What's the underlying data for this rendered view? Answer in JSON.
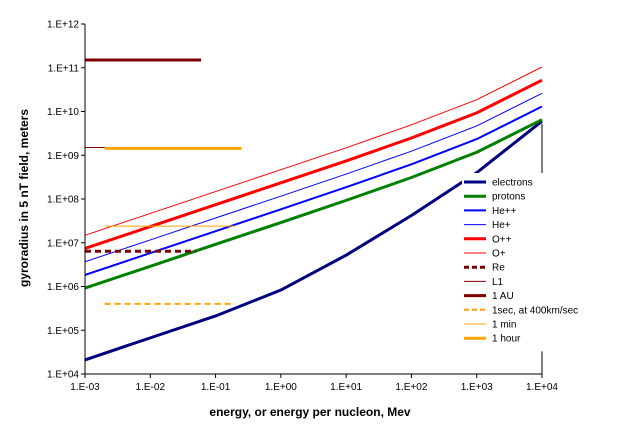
{
  "chart_data": {
    "type": "line",
    "title": "",
    "xlabel": "energy, or energy per nucleon, Mev",
    "ylabel": "gyroradius in 5 nT field, meters",
    "x_scale": "log",
    "y_scale": "log",
    "xlim": [
      0.001,
      10000
    ],
    "ylim": [
      10000,
      1000000000000
    ],
    "x_ticks": [
      {
        "value": 0.001,
        "label": "1.E-03"
      },
      {
        "value": 0.01,
        "label": "1.E-02"
      },
      {
        "value": 0.1,
        "label": "1.E-01"
      },
      {
        "value": 1,
        "label": "1.E+00"
      },
      {
        "value": 10,
        "label": "1.E+01"
      },
      {
        "value": 100,
        "label": "1.E+02"
      },
      {
        "value": 1000,
        "label": "1.E+03"
      },
      {
        "value": 10000,
        "label": "1.E+04"
      }
    ],
    "y_ticks": [
      {
        "value": 10000,
        "label": "1.E+04"
      },
      {
        "value": 100000,
        "label": "1.E+05"
      },
      {
        "value": 1000000,
        "label": "1.E+06"
      },
      {
        "value": 10000000,
        "label": "1.E+07"
      },
      {
        "value": 100000000,
        "label": "1.E+08"
      },
      {
        "value": 1000000000,
        "label": "1.E+09"
      },
      {
        "value": 10000000000,
        "label": "1.E+10"
      },
      {
        "value": 100000000000,
        "label": "1.E+11"
      },
      {
        "value": 1000000000000,
        "label": "1.E+12"
      }
    ],
    "grid": false,
    "legend_position": "right",
    "series": [
      {
        "name": "electrons",
        "color": "#000080",
        "width": 3,
        "dash": "solid",
        "x": [
          0.001,
          0.01,
          0.1,
          1,
          10,
          100,
          1000,
          10000
        ],
        "y": [
          21000,
          67000,
          212000,
          830000,
          5200000,
          42000000,
          400000000,
          6000000000
        ]
      },
      {
        "name": "protons",
        "color": "#008000",
        "width": 3,
        "dash": "solid",
        "x": [
          0.001,
          0.01,
          0.1,
          1,
          10,
          100,
          1000,
          10000
        ],
        "y": [
          920000,
          2900000,
          9200000,
          29000000,
          93000000,
          310000000,
          1170000000,
          6500000000
        ]
      },
      {
        "name": "He++",
        "color": "#0000FF",
        "width": 2,
        "dash": "solid",
        "x": [
          0.001,
          0.01,
          0.1,
          1,
          10,
          100,
          1000,
          10000
        ],
        "y": [
          1840000,
          5800000,
          18400000,
          58000000,
          186000000,
          620000000,
          2340000000,
          13000000000
        ]
      },
      {
        "name": "He+",
        "color": "#0000FF",
        "width": 1,
        "dash": "solid",
        "x": [
          0.001,
          0.01,
          0.1,
          1,
          10,
          100,
          1000,
          10000
        ],
        "y": [
          3680000,
          11600000,
          36800000,
          116000000,
          372000000,
          1240000000,
          4680000000,
          26000000000
        ]
      },
      {
        "name": "O++",
        "color": "#FF0000",
        "width": 3,
        "dash": "solid",
        "x": [
          0.001,
          0.01,
          0.1,
          1,
          10,
          100,
          1000,
          10000
        ],
        "y": [
          7400000,
          23400000,
          74000000,
          234000000,
          740000000,
          2480000000,
          9300000000,
          52000000000
        ]
      },
      {
        "name": "O+",
        "color": "#FF0000",
        "width": 1,
        "dash": "solid",
        "x": [
          0.001,
          0.01,
          0.1,
          1,
          10,
          100,
          1000,
          10000
        ],
        "y": [
          14800000,
          46800000,
          148000000,
          468000000,
          1480000000,
          4960000000,
          18600000000,
          104000000000
        ]
      },
      {
        "name": "Re",
        "color": "#800000",
        "width": 3,
        "dash": "dash",
        "x": [
          0.001,
          0.05
        ],
        "y": [
          6400000,
          6400000
        ]
      },
      {
        "name": "L1",
        "color": "#800000",
        "width": 1,
        "dash": "solid",
        "x": [
          0.001,
          0.05
        ],
        "y": [
          1500000000,
          1500000000
        ]
      },
      {
        "name": "1 AU",
        "color": "#800000",
        "width": 3,
        "dash": "solid",
        "x": [
          0.001,
          0.06
        ],
        "y": [
          150000000000,
          150000000000
        ]
      },
      {
        "name": "1sec, at 400km/sec",
        "color": "#FFA500",
        "width": 2,
        "dash": "dash",
        "x": [
          0.002,
          0.2
        ],
        "y": [
          400000,
          400000
        ]
      },
      {
        "name": "1 min",
        "color": "#FFA500",
        "width": 1,
        "dash": "solid",
        "x": [
          0.002,
          0.2
        ],
        "y": [
          24000000,
          24000000
        ]
      },
      {
        "name": "1 hour",
        "color": "#FFA500",
        "width": 3,
        "dash": "solid",
        "x": [
          0.002,
          0.25
        ],
        "y": [
          1440000000,
          1440000000
        ]
      }
    ]
  }
}
